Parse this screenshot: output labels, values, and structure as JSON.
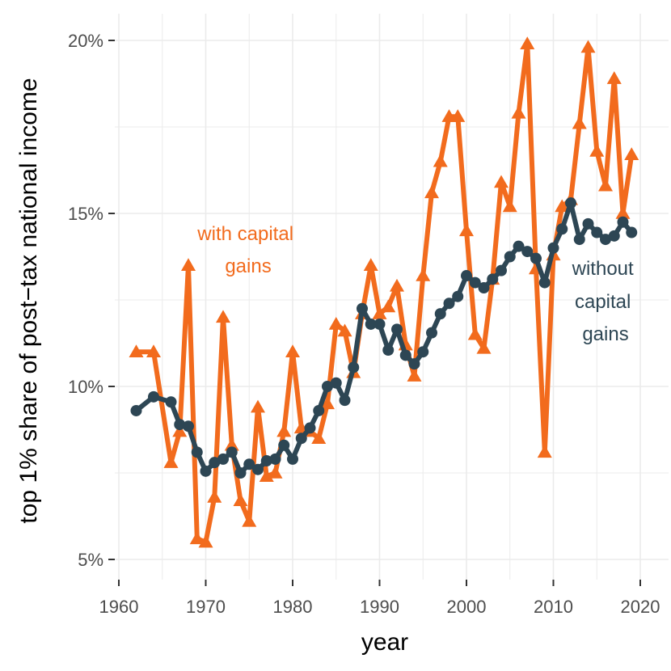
{
  "chart_data": {
    "type": "line",
    "title": "",
    "xlabel": "year",
    "ylabel": "top 1% share of post−tax national income",
    "xlim": [
      1958,
      2021
    ],
    "ylim": [
      4,
      21
    ],
    "x_ticks": [
      1960,
      1970,
      1980,
      1990,
      2000,
      2010,
      2020
    ],
    "x_tick_labels": [
      "1960",
      "1970",
      "1980",
      "1990",
      "2000",
      "2010",
      "2020"
    ],
    "y_ticks": [
      5,
      10,
      15,
      20
    ],
    "y_tick_labels": [
      "5%",
      "10%",
      "15%",
      "20%"
    ],
    "grid": true,
    "x": [
      1962,
      1964,
      1966,
      1967,
      1968,
      1969,
      1970,
      1971,
      1972,
      1973,
      1974,
      1975,
      1976,
      1977,
      1978,
      1979,
      1980,
      1981,
      1982,
      1983,
      1984,
      1985,
      1986,
      1987,
      1988,
      1989,
      1990,
      1991,
      1992,
      1993,
      1994,
      1995,
      1996,
      1997,
      1998,
      1999,
      2000,
      2001,
      2002,
      2003,
      2004,
      2005,
      2006,
      2007,
      2008,
      2009,
      2010,
      2011,
      2012,
      2013,
      2014,
      2015,
      2016,
      2017,
      2018,
      2019
    ],
    "series": [
      {
        "name": "with capital gains",
        "color": "#F26B1D",
        "marker": "triangle",
        "values": [
          11.0,
          11.0,
          7.8,
          8.7,
          13.5,
          5.6,
          5.5,
          6.8,
          12.0,
          8.3,
          6.7,
          6.1,
          9.4,
          7.4,
          7.5,
          8.7,
          11.0,
          8.8,
          8.7,
          8.5,
          9.5,
          11.8,
          11.6,
          10.4,
          12.1,
          13.5,
          12.1,
          12.3,
          12.9,
          11.2,
          10.3,
          13.2,
          15.6,
          16.5,
          17.8,
          17.8,
          14.5,
          11.5,
          11.1,
          13.1,
          15.9,
          15.2,
          17.9,
          19.9,
          13.4,
          8.1,
          13.8,
          15.2,
          15.4,
          17.6,
          19.8,
          16.8,
          15.8,
          18.9,
          15.0,
          16.7
        ]
      },
      {
        "name": "without capital gains",
        "color": "#2D4654",
        "marker": "circle",
        "values": [
          9.3,
          9.7,
          9.55,
          8.9,
          8.85,
          8.1,
          7.55,
          7.8,
          7.9,
          8.1,
          7.5,
          7.75,
          7.6,
          7.85,
          7.9,
          8.3,
          7.9,
          8.5,
          8.8,
          9.3,
          10.0,
          10.1,
          9.6,
          10.55,
          12.25,
          11.8,
          11.8,
          11.05,
          11.65,
          10.9,
          10.65,
          11.0,
          11.55,
          12.1,
          12.4,
          12.6,
          13.2,
          13.0,
          12.85,
          13.1,
          13.35,
          13.75,
          14.05,
          13.9,
          13.7,
          13.0,
          14.0,
          14.55,
          15.3,
          14.25,
          14.7,
          14.45,
          14.25,
          14.35,
          14.75,
          14.45
        ]
      }
    ],
    "annotations": [
      {
        "text": "with capital\ngains",
        "series": "with capital gains"
      },
      {
        "text": "without\ncapital\ngains",
        "series": "without capital gains"
      }
    ]
  }
}
